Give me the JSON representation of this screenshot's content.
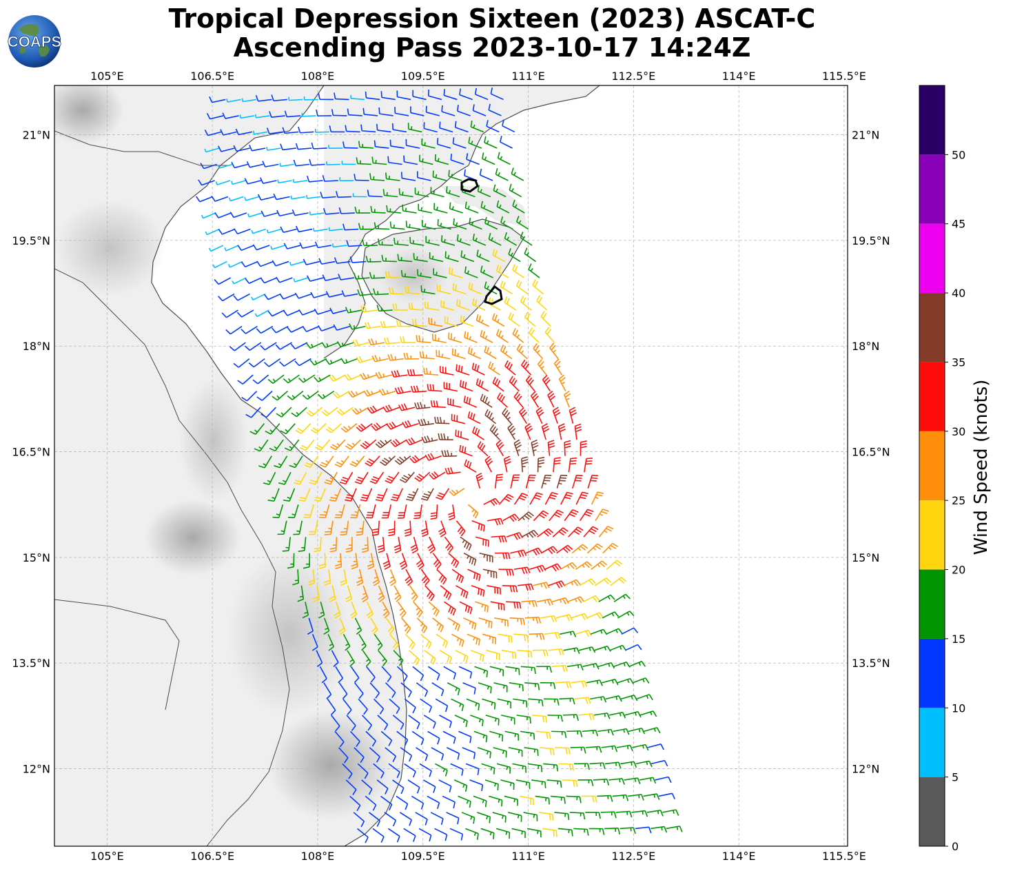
{
  "title": {
    "line1": "Tropical Depression Sixteen (2023) ASCAT-C",
    "line2": "Ascending Pass 2023-10-17 14:24Z"
  },
  "logo": {
    "text": "COAPS",
    "icon": "globe-logo-icon"
  },
  "map": {
    "lon_range": [
      104.25,
      115.55
    ],
    "lat_range": [
      10.9,
      21.7
    ],
    "lon_ticks": [
      {
        "v": 105,
        "label": "105°E"
      },
      {
        "v": 106.5,
        "label": "106.5°E"
      },
      {
        "v": 108,
        "label": "108°E"
      },
      {
        "v": 109.5,
        "label": "109.5°E"
      },
      {
        "v": 111,
        "label": "111°E"
      },
      {
        "v": 112.5,
        "label": "112.5°E"
      },
      {
        "v": 114,
        "label": "114°E"
      },
      {
        "v": 115.5,
        "label": "115.5°E"
      }
    ],
    "lat_ticks": [
      {
        "v": 21,
        "label": "21°N"
      },
      {
        "v": 19.5,
        "label": "19.5°N"
      },
      {
        "v": 18,
        "label": "18°N"
      },
      {
        "v": 16.5,
        "label": "16.5°N"
      },
      {
        "v": 15,
        "label": "15°N"
      },
      {
        "v": 13.5,
        "label": "13.5°N"
      },
      {
        "v": 12,
        "label": "12°N"
      }
    ],
    "grid": true,
    "storm_center": {
      "lon": 110.2,
      "lat": 15.9
    },
    "swath_bounds": {
      "nw": [
        106.5,
        20.1
      ],
      "ne": [
        110.7,
        21.6
      ],
      "se": [
        113.1,
        11.0
      ],
      "sw": [
        108.6,
        11.0
      ]
    }
  },
  "colorbar": {
    "label": "Wind Speed (knots)",
    "ticks": [
      "0",
      "5",
      "10",
      "15",
      "20",
      "25",
      "30",
      "35",
      "40",
      "45",
      "50"
    ],
    "bins": [
      {
        "from": 0,
        "to": 5,
        "color": "#595959"
      },
      {
        "from": 5,
        "to": 10,
        "color": "#00bfff"
      },
      {
        "from": 10,
        "to": 15,
        "color": "#0038ff"
      },
      {
        "from": 15,
        "to": 20,
        "color": "#009400"
      },
      {
        "from": 20,
        "to": 25,
        "color": "#ffd60f"
      },
      {
        "from": 25,
        "to": 30,
        "color": "#ff8f0a"
      },
      {
        "from": 30,
        "to": 35,
        "color": "#ff0d0d"
      },
      {
        "from": 35,
        "to": 40,
        "color": "#843c29"
      },
      {
        "from": 40,
        "to": 45,
        "color": "#f000f0"
      },
      {
        "from": 45,
        "to": 50,
        "color": "#8a00b8"
      },
      {
        "from": 50,
        "to": 55,
        "color": "#2a0066"
      }
    ]
  }
}
